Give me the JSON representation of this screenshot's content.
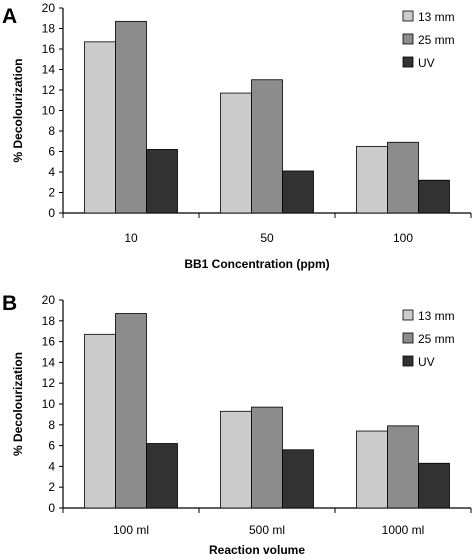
{
  "chart_data": [
    {
      "type": "bar",
      "panel_label": "A",
      "title": "",
      "categories": [
        "10",
        "50",
        "100"
      ],
      "xlabel": "BB1 Concentration  (ppm)",
      "ylabel": "% Decolourization",
      "ylim": [
        0,
        20
      ],
      "yticks": [
        "0",
        "2",
        "4",
        "6",
        "8",
        "10",
        "12",
        "14",
        "16",
        "18",
        "20"
      ],
      "series": [
        {
          "name": "13 mm",
          "values": [
            16.7,
            11.7,
            6.5
          ],
          "color": "#cccccc"
        },
        {
          "name": "25 mm",
          "values": [
            18.7,
            13.0,
            6.9
          ],
          "color": "#8c8c8c"
        },
        {
          "name": "UV",
          "values": [
            6.2,
            4.1,
            3.2
          ],
          "color": "#333333"
        }
      ],
      "grid": false,
      "legend_position": "top-right"
    },
    {
      "type": "bar",
      "panel_label": "B",
      "title": "",
      "categories": [
        "100 ml",
        "500 ml",
        "1000 ml"
      ],
      "xlabel": "Reaction volume",
      "ylabel": "% Decolourization",
      "ylim": [
        0,
        20
      ],
      "yticks": [
        "0",
        "2",
        "4",
        "6",
        "8",
        "10",
        "12",
        "14",
        "16",
        "18",
        "20"
      ],
      "series": [
        {
          "name": "13 mm",
          "values": [
            16.7,
            9.3,
            7.4
          ],
          "color": "#cccccc"
        },
        {
          "name": "25 mm",
          "values": [
            18.7,
            9.7,
            7.9
          ],
          "color": "#8c8c8c"
        },
        {
          "name": "UV",
          "values": [
            6.2,
            5.6,
            4.3
          ],
          "color": "#333333"
        }
      ],
      "grid": false,
      "legend_position": "top-right"
    }
  ]
}
